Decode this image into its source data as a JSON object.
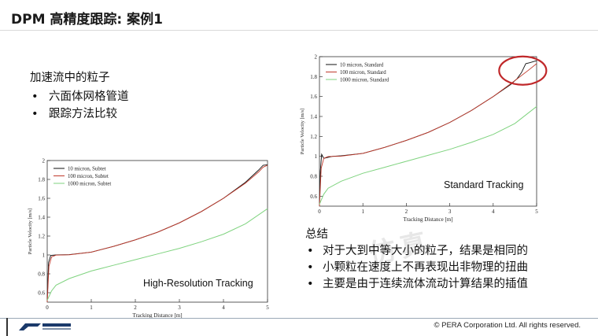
{
  "slide": {
    "title": "DPM 高精度跟踪: 案例1",
    "intro": {
      "heading": "加速流中的粒子",
      "bullets": [
        "六面体网格管道",
        "跟踪方法比较"
      ]
    },
    "summary": {
      "heading": "总结",
      "bullets": [
        "对于大到中等大小的粒子，结果是相同的",
        "小颗粒在速度上不再表现出非物理的扭曲",
        "主要是由于连续流体流动计算结果的插值"
      ]
    },
    "copyright": "© PERA Corporation Ltd. All rights reserved.",
    "colors": {
      "series_10": "#111111",
      "series_100": "#c0392b",
      "series_1000": "#7fd37f",
      "highlight": "#c0282a"
    }
  },
  "chart_data": [
    {
      "type": "line",
      "caption": "High-Resolution Tracking",
      "xlabel": "Tracking Distance [m]",
      "ylabel": "Particle Velocity [m/s]",
      "xlim": [
        0,
        5
      ],
      "ylim": [
        0.5,
        2
      ],
      "xticks": [
        "0",
        "1",
        "2",
        "3",
        "4",
        "5"
      ],
      "yticks": [
        "0.6",
        "0.8",
        "1",
        "1.2",
        "1.4",
        "1.6",
        "1.8",
        "2"
      ],
      "legend_position": "top-left",
      "grid": false,
      "series": [
        {
          "name": "10 micron, Subtet",
          "x": [
            0,
            0.03,
            0.08,
            0.2,
            0.5,
            1,
            1.5,
            2,
            2.5,
            3,
            3.5,
            4,
            4.5,
            4.8,
            4.9,
            5
          ],
          "y": [
            0.5,
            0.92,
            0.995,
            1.0,
            1.003,
            1.03,
            1.09,
            1.16,
            1.24,
            1.34,
            1.46,
            1.6,
            1.77,
            1.9,
            1.95,
            1.955
          ]
        },
        {
          "name": "100 micron, Subtet",
          "x": [
            0,
            0.04,
            0.1,
            0.2,
            0.5,
            1,
            1.5,
            2,
            2.5,
            3,
            3.5,
            4,
            4.5,
            4.8,
            4.9,
            5
          ],
          "y": [
            0.5,
            0.88,
            0.98,
            0.998,
            1.002,
            1.03,
            1.09,
            1.16,
            1.24,
            1.34,
            1.46,
            1.6,
            1.76,
            1.88,
            1.93,
            1.95
          ]
        },
        {
          "name": "1000 micron, Subtet",
          "x": [
            0,
            0.1,
            0.2,
            0.5,
            1,
            1.5,
            2,
            2.5,
            3,
            3.5,
            4,
            4.5,
            5
          ],
          "y": [
            0.52,
            0.62,
            0.68,
            0.75,
            0.83,
            0.89,
            0.95,
            1.01,
            1.07,
            1.14,
            1.22,
            1.33,
            1.49
          ]
        }
      ]
    },
    {
      "type": "line",
      "caption": "Standard Tracking",
      "xlabel": "Tracking Distance [m]",
      "ylabel": "Particle Velocity [m/s]",
      "xlim": [
        0,
        5
      ],
      "ylim": [
        0.5,
        2
      ],
      "xticks": [
        "0",
        "1",
        "2",
        "3",
        "4",
        "5"
      ],
      "yticks": [
        "0.6",
        "0.8",
        "1",
        "1.2",
        "1.4",
        "1.6",
        "1.8",
        "2"
      ],
      "legend_position": "top-left",
      "grid": false,
      "series": [
        {
          "name": "10 micron, Standard",
          "x": [
            0,
            0.02,
            0.05,
            0.1,
            0.3,
            0.5,
            1,
            1.5,
            2,
            2.5,
            3,
            3.5,
            4,
            4.4,
            4.55,
            4.65,
            4.75,
            4.85,
            5
          ],
          "y": [
            0.5,
            0.85,
            1.02,
            0.98,
            1.0,
            1.005,
            1.03,
            1.09,
            1.16,
            1.24,
            1.34,
            1.46,
            1.6,
            1.72,
            1.78,
            1.84,
            1.93,
            1.94,
            1.96
          ]
        },
        {
          "name": "100 micron, Standard",
          "x": [
            0,
            0.04,
            0.1,
            0.2,
            0.5,
            1,
            1.5,
            2,
            2.5,
            3,
            3.5,
            4,
            4.5,
            4.8,
            5
          ],
          "y": [
            0.5,
            0.88,
            0.98,
            0.998,
            1.002,
            1.03,
            1.09,
            1.16,
            1.24,
            1.34,
            1.46,
            1.6,
            1.76,
            1.86,
            1.93
          ]
        },
        {
          "name": "1000 micron, Standard",
          "x": [
            0,
            0.1,
            0.2,
            0.5,
            1,
            1.5,
            2,
            2.5,
            3,
            3.5,
            4,
            4.5,
            5
          ],
          "y": [
            0.52,
            0.62,
            0.68,
            0.75,
            0.83,
            0.89,
            0.95,
            1.01,
            1.07,
            1.14,
            1.22,
            1.33,
            1.5
          ]
        }
      ]
    }
  ]
}
